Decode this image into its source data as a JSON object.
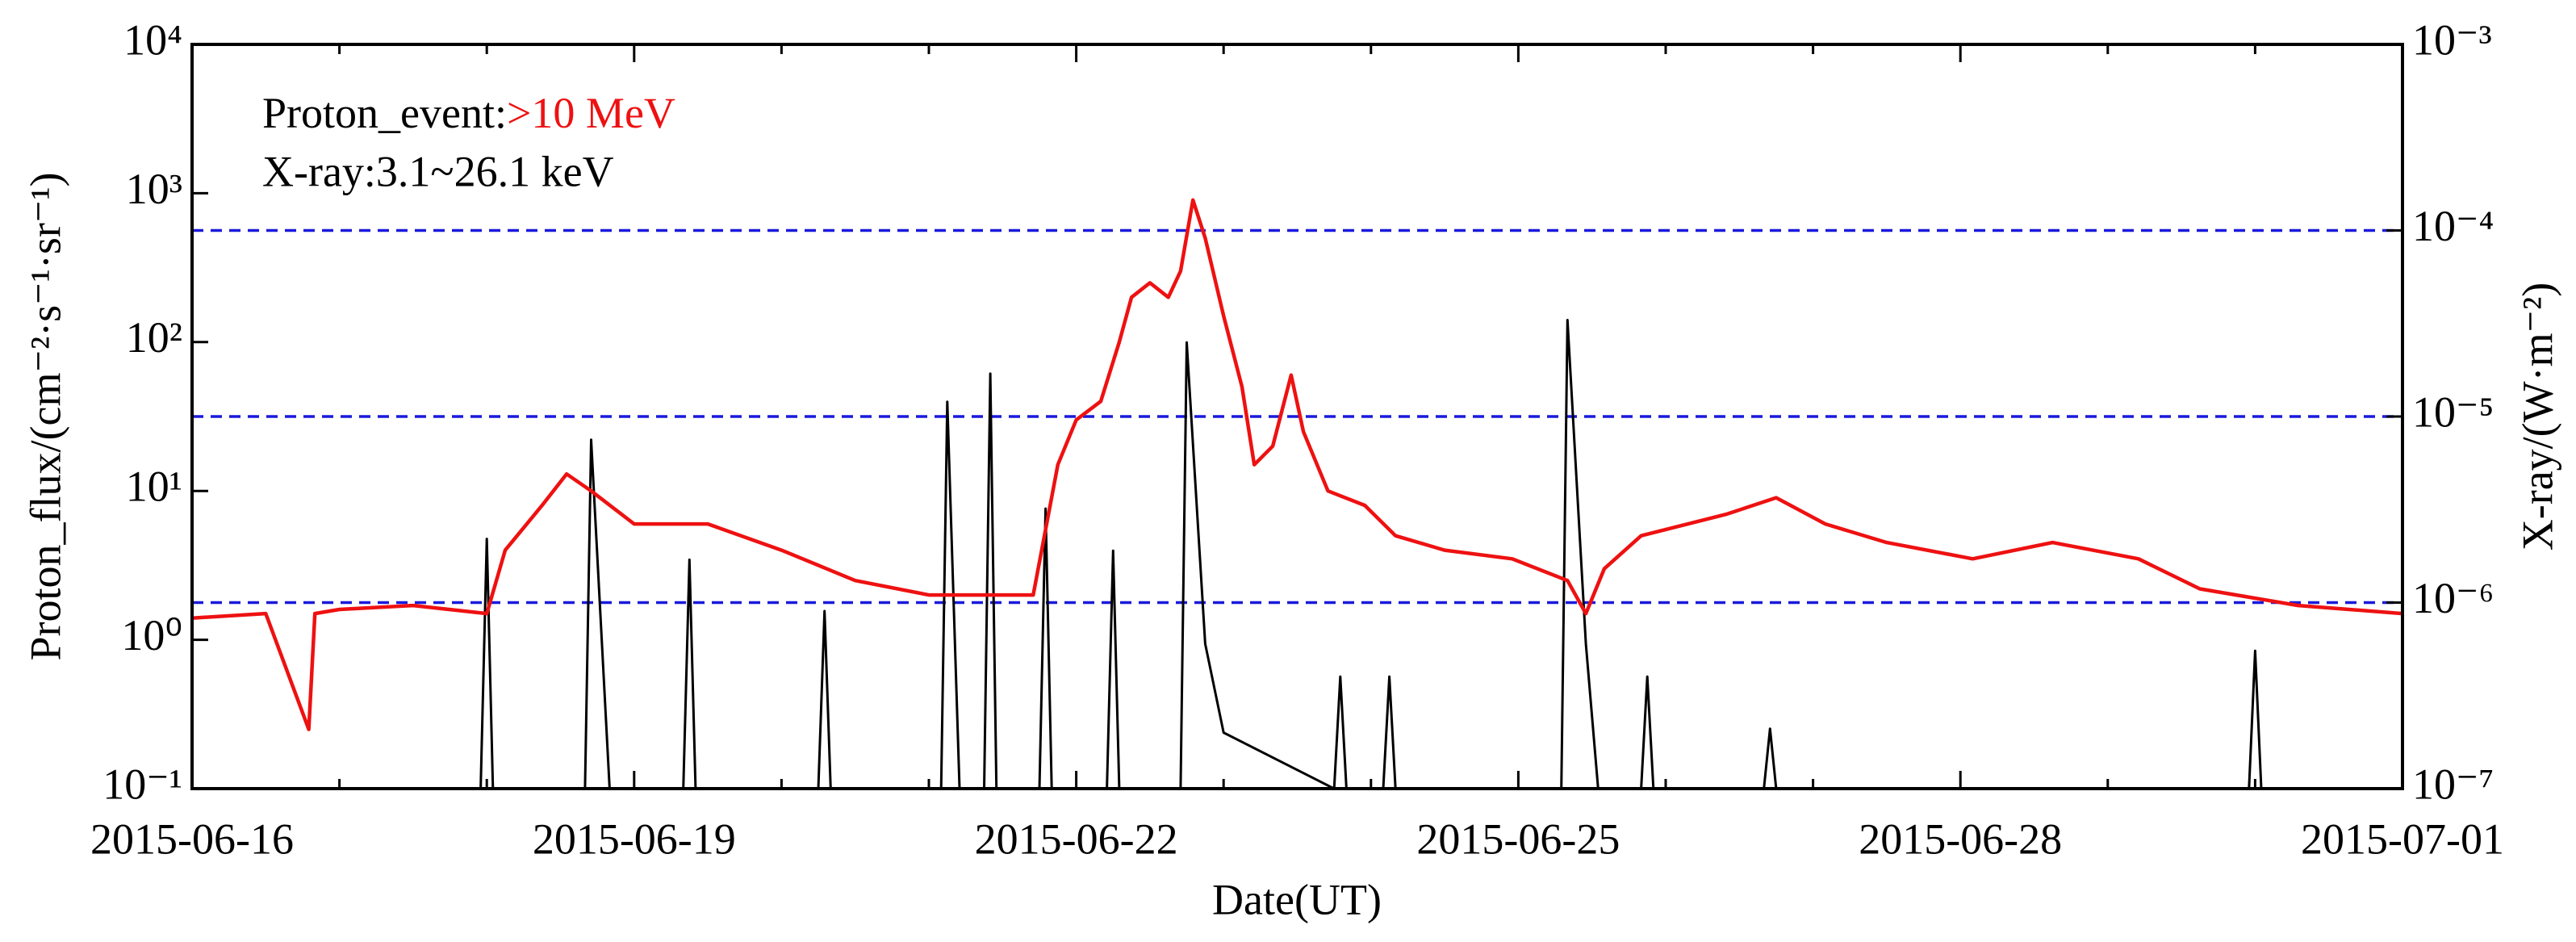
{
  "chart_data": {
    "type": "line",
    "annotations": [
      {
        "text": "Proton_event:",
        "color": "#000000",
        "highlight": ">10 MeV",
        "highlight_color": "#ee1111"
      },
      {
        "text": "X-ray:3.1~26.1 keV",
        "color": "#000000"
      }
    ],
    "xlabel": "Date(UT)",
    "ylabel": "Proton_flux/(cm⁻²·s⁻¹·sr⁻¹)",
    "y2label": "X-ray/(W·m⁻²)",
    "xlim": [
      "2015-06-16",
      "2015-07-01"
    ],
    "xticks": [
      "2015-06-16",
      "2015-06-19",
      "2015-06-22",
      "2015-06-25",
      "2015-06-28",
      "2015-07-01"
    ],
    "xminorticks": [
      "2015-06-17",
      "2015-06-18",
      "2015-06-20",
      "2015-06-21",
      "2015-06-23",
      "2015-06-24",
      "2015-06-26",
      "2015-06-27",
      "2015-06-29",
      "2015-06-30"
    ],
    "ylog": true,
    "ylim": [
      0.1,
      10000
    ],
    "yticks": [
      {
        "value": 0.1,
        "label": "10⁻¹"
      },
      {
        "value": 1,
        "label": "10⁰"
      },
      {
        "value": 10,
        "label": "10¹"
      },
      {
        "value": 100,
        "label": "10²"
      },
      {
        "value": 1000,
        "label": "10³"
      },
      {
        "value": 10000,
        "label": "10⁴"
      }
    ],
    "y2log": true,
    "y2lim": [
      1e-07,
      0.001
    ],
    "y2ticks": [
      {
        "value": 1e-07,
        "label": "10⁻⁷"
      },
      {
        "value": 1e-06,
        "label": "10⁻⁶"
      },
      {
        "value": 1e-05,
        "label": "10⁻⁵"
      },
      {
        "value": 0.0001,
        "label": "10⁻⁴"
      },
      {
        "value": 0.001,
        "label": "10⁻³"
      }
    ],
    "reference_lines": {
      "axis": "y2",
      "values": [
        0.0001,
        1e-05,
        1e-06
      ],
      "color": "#1a1adb"
    },
    "series": [
      {
        "name": "Proton_event",
        "color": "#ee1111",
        "axis": "y",
        "x": [
          "2015-06-16T00:00",
          "2015-06-16T12:00",
          "2015-06-16T19:00",
          "2015-06-16T20:00",
          "2015-06-17T00:00",
          "2015-06-17T12:00",
          "2015-06-18T00:00",
          "2015-06-18T03:00",
          "2015-06-18T09:00",
          "2015-06-18T13:00",
          "2015-06-18T17:00",
          "2015-06-19T00:00",
          "2015-06-19T12:00",
          "2015-06-20T00:00",
          "2015-06-20T12:00",
          "2015-06-21T00:00",
          "2015-06-21T12:00",
          "2015-06-21T17:00",
          "2015-06-21T21:00",
          "2015-06-22T00:00",
          "2015-06-22T04:00",
          "2015-06-22T07:00",
          "2015-06-22T09:00",
          "2015-06-22T12:00",
          "2015-06-22T15:00",
          "2015-06-22T17:00",
          "2015-06-22T19:00",
          "2015-06-22T21:00",
          "2015-06-23T00:00",
          "2015-06-23T03:00",
          "2015-06-23T05:00",
          "2015-06-23T08:00",
          "2015-06-23T11:00",
          "2015-06-23T13:00",
          "2015-06-23T17:00",
          "2015-06-23T23:00",
          "2015-06-24T04:00",
          "2015-06-24T12:00",
          "2015-06-24T23:00",
          "2015-06-25T08:00",
          "2015-06-25T11:00",
          "2015-06-25T14:00",
          "2015-06-25T20:00",
          "2015-06-26T10:00",
          "2015-06-26T18:00",
          "2015-06-27T02:00",
          "2015-06-27T12:00",
          "2015-06-28T02:00",
          "2015-06-28T15:00",
          "2015-06-29T05:00",
          "2015-06-29T15:00",
          "2015-06-30T07:00",
          "2015-07-01T00:00"
        ],
        "values": [
          1.4,
          1.5,
          0.25,
          1.5,
          1.6,
          1.7,
          1.5,
          4,
          8,
          13,
          10,
          6,
          6,
          4,
          2.5,
          2,
          2,
          2,
          15,
          30,
          40,
          100,
          200,
          250,
          200,
          300,
          900,
          500,
          150,
          50,
          15,
          20,
          60,
          25,
          10,
          8,
          5,
          4,
          3.5,
          2.5,
          1.5,
          3,
          5,
          7,
          9,
          6,
          4.5,
          3.5,
          4.5,
          3.5,
          2.2,
          1.7,
          1.5
        ]
      },
      {
        "name": "X-ray",
        "color": "#000000",
        "axis": "y2",
        "x": [
          "2015-06-16T00:00",
          "2015-06-17T23:00",
          "2015-06-18T00:00",
          "2015-06-18T01:00",
          "2015-06-18T16:00",
          "2015-06-18T17:00",
          "2015-06-18T20:00",
          "2015-06-19T08:00",
          "2015-06-19T09:00",
          "2015-06-19T10:00",
          "2015-06-20T06:00",
          "2015-06-20T07:00",
          "2015-06-20T08:00",
          "2015-06-21T02:00",
          "2015-06-21T03:00",
          "2015-06-21T05:00",
          "2015-06-21T09:00",
          "2015-06-21T10:00",
          "2015-06-21T11:00",
          "2015-06-21T18:00",
          "2015-06-21T19:00",
          "2015-06-21T20:00",
          "2015-06-22T05:00",
          "2015-06-22T06:00",
          "2015-06-22T07:00",
          "2015-06-22T17:00",
          "2015-06-22T18:00",
          "2015-06-22T21:00",
          "2015-06-23T00:00",
          "2015-06-23T18:00",
          "2015-06-23T19:00",
          "2015-06-23T20:00",
          "2015-06-24T02:00",
          "2015-06-24T03:00",
          "2015-06-24T04:00",
          "2015-06-25T07:00",
          "2015-06-25T08:00",
          "2015-06-25T11:00",
          "2015-06-25T13:00",
          "2015-06-25T20:00",
          "2015-06-25T21:00",
          "2015-06-25T22:00",
          "2015-06-26T16:00",
          "2015-06-26T17:00",
          "2015-06-26T18:00",
          "2015-06-29T23:00",
          "2015-06-30T00:00",
          "2015-06-30T01:00",
          "2015-07-01T00:00"
        ],
        "values": [
          1e-07,
          1e-07,
          2.2e-06,
          1e-07,
          1e-07,
          7.5e-06,
          1e-07,
          1e-07,
          1.7e-06,
          1e-07,
          1e-07,
          9e-07,
          1e-07,
          1e-07,
          1.2e-05,
          1e-07,
          1e-07,
          1.7e-05,
          1e-07,
          1e-07,
          3.2e-06,
          1e-07,
          1e-07,
          1.9e-06,
          1e-07,
          1e-07,
          2.5e-05,
          6e-07,
          2e-07,
          1e-07,
          4e-07,
          1e-07,
          1e-07,
          4e-07,
          1e-07,
          1e-07,
          3.3e-05,
          6e-07,
          1e-07,
          1e-07,
          4e-07,
          1e-07,
          1e-07,
          2.1e-07,
          1e-07,
          1e-07,
          5.5e-07,
          1e-07,
          1e-07
        ]
      }
    ]
  }
}
